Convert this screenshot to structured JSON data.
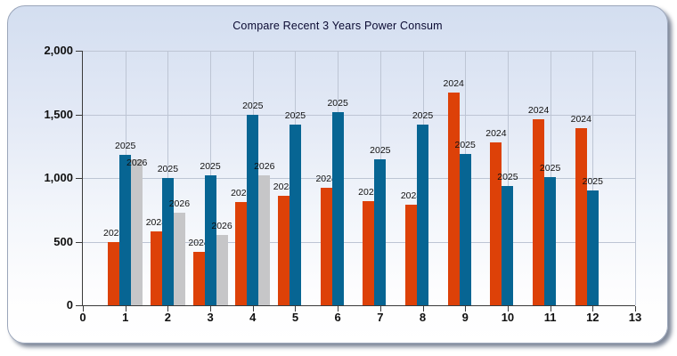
{
  "panel": {
    "background_top": "#d3def0",
    "background_bottom": "#ffffff",
    "border_color": "#9ba6ba"
  },
  "chart_data": {
    "type": "bar",
    "title": "Compare Recent 3 Years Power Consum",
    "title_color": "#0a0a32",
    "xlabel": "",
    "ylabel": "",
    "xlim": [
      0,
      13
    ],
    "ylim": [
      0,
      2000
    ],
    "grid": true,
    "gridline_color": "#bdc5d4",
    "axis_color": "#3a3a3a",
    "legend_position": "none",
    "bar_label_mode": "series-name-above-bar",
    "categories": [
      1,
      2,
      3,
      4,
      5,
      6,
      7,
      8,
      9,
      10,
      11,
      12
    ],
    "series": [
      {
        "name": "2024",
        "color": "#dd4108",
        "values": [
          500,
          580,
          420,
          810,
          860,
          920,
          820,
          790,
          1670,
          1280,
          1460,
          1390
        ]
      },
      {
        "name": "2025",
        "color": "#076593",
        "values": [
          1180,
          1000,
          1020,
          1500,
          1420,
          1520,
          1150,
          1420,
          1190,
          940,
          1010,
          900
        ]
      },
      {
        "name": "2026",
        "color": "#c6c6c8",
        "values": [
          1150,
          730,
          550,
          1020,
          null,
          null,
          null,
          null,
          null,
          null,
          null,
          null
        ]
      }
    ],
    "y_ticks": [
      {
        "value": 0,
        "label": "0"
      },
      {
        "value": 500,
        "label": "500"
      },
      {
        "value": 1000,
        "label": "1,000"
      },
      {
        "value": 1500,
        "label": "1,500"
      },
      {
        "value": 2000,
        "label": "2,000"
      }
    ],
    "x_tick_labels": [
      "0",
      "1",
      "2",
      "3",
      "4",
      "5",
      "6",
      "7",
      "8",
      "9",
      "10",
      "11",
      "12",
      "13"
    ],
    "label_adjustments": [
      {
        "series_index": 2,
        "category_index": 0,
        "dy": 14
      }
    ]
  }
}
